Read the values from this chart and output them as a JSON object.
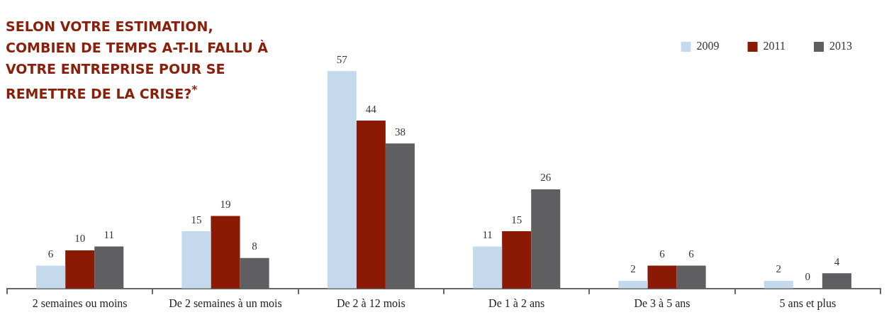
{
  "chart_data": {
    "type": "bar",
    "title": "SELON VOTRE ESTIMATION, COMBIEN DE TEMPS A-T-IL FALLU À VOTRE ENTREPRISE POUR SE REMETTRE DE LA CRISE?$^{*}$",
    "categories": [
      "2 semaines ou moins",
      "De 2 semaines à un mois",
      "De 2 à 12 mois",
      "De 1 à 2 ans",
      "De 3 à 5 ans",
      "5 ans et plus"
    ],
    "series": [
      {
        "name": "2009",
        "color": "#c5d9ec",
        "values": [
          6,
          15,
          57,
          11,
          2,
          2
        ]
      },
      {
        "name": "2011",
        "color": "#8b1a04",
        "values": [
          10,
          19,
          44,
          15,
          6,
          0
        ]
      },
      {
        "name": "2013",
        "color": "#5f5f61",
        "values": [
          11,
          8,
          38,
          26,
          6,
          4
        ]
      }
    ],
    "data_labels": true,
    "legend": "top right",
    "grid": false
  }
}
